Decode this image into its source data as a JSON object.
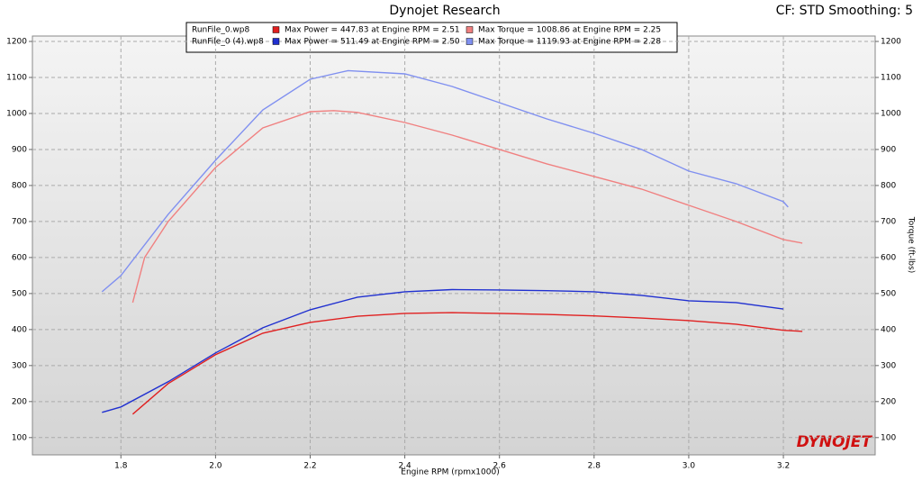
{
  "chart_data": {
    "type": "line",
    "title": "Dynojet Research",
    "subtitle": "CF: STD Smoothing: 5",
    "x_label": "Engine RPM (rpmx1000)",
    "y2_label": "Torque (ft-lbs)",
    "logo": "DYNOJET",
    "legend_files": [
      "RunFile_0.wp8",
      "RunFile_0 (4).wp8"
    ],
    "xlim": [
      1.613,
      3.394
    ],
    "xticks": [
      1.8,
      {
        "value": 2,
        "label": "2.0"
      },
      2.2,
      2.4,
      2.6,
      2.8,
      {
        "value": 3,
        "label": "3.0"
      },
      3.2
    ],
    "ylim": [
      52,
      1215
    ],
    "yticks": [
      100,
      200,
      300,
      400,
      500,
      600,
      700,
      800,
      900,
      1000,
      1100,
      1200
    ],
    "y2lim": [
      52,
      1215
    ],
    "y2ticks": [
      100,
      200,
      300,
      400,
      500,
      600,
      700,
      800,
      900,
      1000,
      1100,
      1200
    ],
    "grid": true,
    "series": [
      {
        "name": "Max Power = 447.83 at Engine RPM = 2.51",
        "color": "#e02020",
        "file": 0,
        "x": [
          1.825,
          1.9,
          2.0,
          2.1,
          2.2,
          2.3,
          2.4,
          2.5,
          2.6,
          2.7,
          2.8,
          2.9,
          3.0,
          3.1,
          3.2,
          3.24
        ],
        "values": [
          165,
          250,
          330,
          390,
          420,
          437,
          445,
          447,
          445,
          442,
          438,
          432,
          425,
          415,
          398,
          395
        ]
      },
      {
        "name": "Max Power = 511.49 at Engine RPM = 2.50",
        "color": "#2030d0",
        "file": 1,
        "x": [
          1.76,
          1.8,
          1.9,
          2.0,
          2.1,
          2.2,
          2.3,
          2.4,
          2.5,
          2.6,
          2.7,
          2.8,
          2.9,
          3.0,
          3.1,
          3.2
        ],
        "values": [
          170,
          185,
          255,
          335,
          405,
          455,
          490,
          505,
          511,
          510,
          508,
          505,
          495,
          480,
          475,
          457
        ]
      },
      {
        "name": "Max Torque = 1008.86 at Engine RPM = 2.25",
        "color": "#f08080",
        "file": 0,
        "axis": "y2",
        "x": [
          1.825,
          1.85,
          1.9,
          2.0,
          2.1,
          2.2,
          2.25,
          2.3,
          2.4,
          2.5,
          2.6,
          2.7,
          2.8,
          2.9,
          3.0,
          3.1,
          3.2,
          3.24
        ],
        "values": [
          475,
          600,
          700,
          850,
          960,
          1005,
          1008,
          1003,
          975,
          940,
          900,
          860,
          825,
          790,
          745,
          700,
          650,
          640
        ]
      },
      {
        "name": "Max Torque = 1119.93 at Engine RPM = 2.28",
        "color": "#8090f0",
        "file": 1,
        "axis": "y2",
        "x": [
          1.76,
          1.8,
          1.9,
          2.0,
          2.1,
          2.2,
          2.28,
          2.4,
          2.5,
          2.6,
          2.7,
          2.8,
          2.9,
          3.0,
          3.1,
          3.2,
          3.21
        ],
        "values": [
          505,
          550,
          720,
          870,
          1010,
          1095,
          1119,
          1110,
          1075,
          1030,
          985,
          945,
          900,
          840,
          805,
          755,
          740
        ]
      }
    ]
  }
}
